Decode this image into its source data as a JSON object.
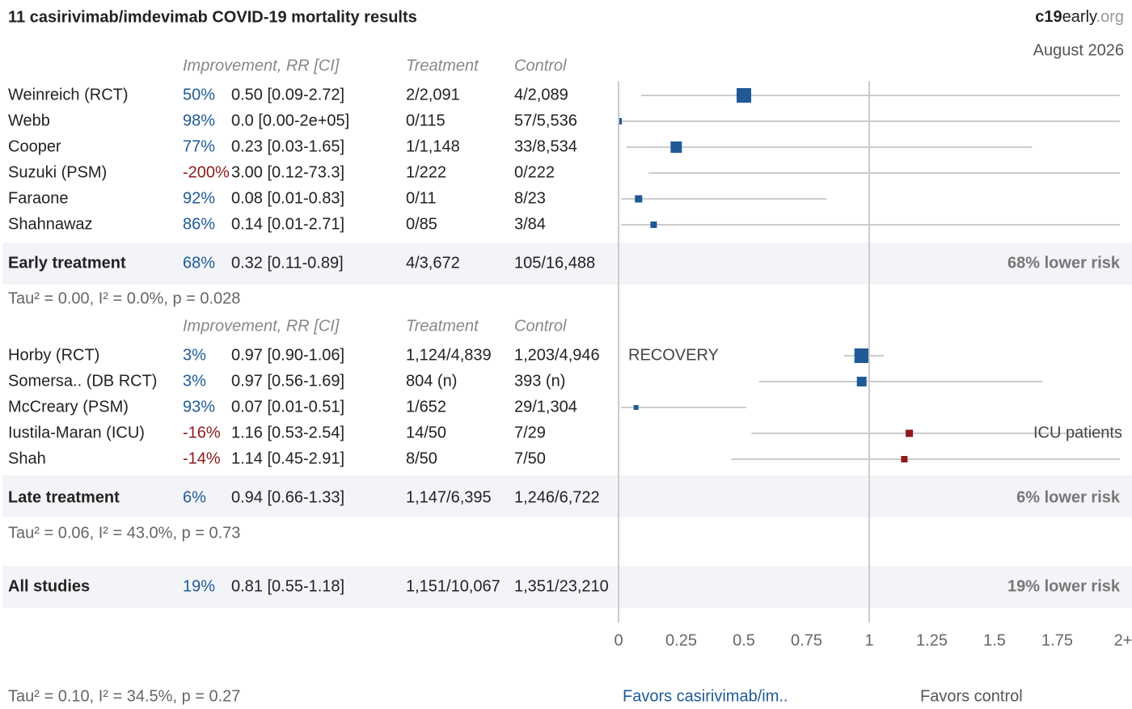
{
  "chart_data": {
    "type": "forest",
    "title": "11 casirivimab/imdevimab COVID-19 mortality results",
    "brand": [
      "c19",
      "early",
      ".org"
    ],
    "date": "August 2026",
    "xlim": [
      0,
      2
    ],
    "xticks": [
      0,
      0.25,
      0.5,
      0.75,
      1,
      1.25,
      1.5,
      1.75,
      {
        "value": 2,
        "label": "2+"
      }
    ],
    "groups": [
      {
        "columns": [
          "Improvement, RR [CI]",
          "Treatment",
          "Control"
        ],
        "studies": [
          {
            "name": "Weinreich (RCT)",
            "improvement": "50%",
            "rr_text": "0.50 [0.09-2.72]",
            "treatment": "2/2,091",
            "control": "4/2,089",
            "rr": 0.5,
            "lo": 0.09,
            "hi": 2.72
          },
          {
            "name": "Webb",
            "improvement": "98%",
            "rr_text": "0.0 [0.00-2e+05]",
            "treatment": "0/115",
            "control": "57/5,536",
            "rr": 0.0,
            "lo": 0.0,
            "hi": 200000
          },
          {
            "name": "Cooper",
            "improvement": "77%",
            "rr_text": "0.23 [0.03-1.65]",
            "treatment": "1/1,148",
            "control": "33/8,534",
            "rr": 0.23,
            "lo": 0.03,
            "hi": 1.65
          },
          {
            "name": "Suzuki (PSM)",
            "improvement": "-200%",
            "rr_text": "3.00 [0.12-73.3]",
            "treatment": "1/222",
            "control": "0/222",
            "rr": 3.0,
            "lo": 0.12,
            "hi": 73.3
          },
          {
            "name": "Faraone",
            "improvement": "92%",
            "rr_text": "0.08 [0.01-0.83]",
            "treatment": "0/11",
            "control": "8/23",
            "rr": 0.08,
            "lo": 0.01,
            "hi": 0.83
          },
          {
            "name": "Shahnawaz",
            "improvement": "86%",
            "rr_text": "0.14 [0.01-2.71]",
            "treatment": "0/85",
            "control": "3/84",
            "rr": 0.14,
            "lo": 0.01,
            "hi": 2.71
          }
        ],
        "summary": {
          "name": "Early treatment",
          "improvement": "68%",
          "rr_text": "0.32 [0.11-0.89]",
          "treatment": "4/3,672",
          "control": "105/16,488",
          "rr": 0.32,
          "lo": 0.11,
          "hi": 0.89,
          "label": "68% lower risk"
        },
        "stats": "Tau² = 0.00, I² = 0.0%, p = 0.028"
      },
      {
        "columns": [
          "Improvement, RR [CI]",
          "Treatment",
          "Control"
        ],
        "studies": [
          {
            "name": "Horby (RCT)",
            "improvement": "3%",
            "rr_text": "0.97 [0.90-1.06]",
            "treatment": "1,124/4,839",
            "control": "1,203/4,946",
            "rr": 0.97,
            "lo": 0.9,
            "hi": 1.06,
            "note": "RECOVERY"
          },
          {
            "name": "Somersa.. (DB RCT)",
            "improvement": "3%",
            "rr_text": "0.97 [0.56-1.69]",
            "treatment": "804 (n)",
            "control": "393 (n)",
            "rr": 0.97,
            "lo": 0.56,
            "hi": 1.69
          },
          {
            "name": "McCreary (PSM)",
            "improvement": "93%",
            "rr_text": "0.07 [0.01-0.51]",
            "treatment": "1/652",
            "control": "29/1,304",
            "rr": 0.07,
            "lo": 0.01,
            "hi": 0.51
          },
          {
            "name": "Iustila-Maran (ICU)",
            "improvement": "-16%",
            "rr_text": "1.16 [0.53-2.54]",
            "treatment": "14/50",
            "control": "7/29",
            "rr": 1.16,
            "lo": 0.53,
            "hi": 2.54,
            "note": "ICU patients"
          },
          {
            "name": "Shah",
            "improvement": "-14%",
            "rr_text": "1.14 [0.45-2.91]",
            "treatment": "8/50",
            "control": "7/50",
            "rr": 1.14,
            "lo": 0.45,
            "hi": 2.91
          }
        ],
        "summary": {
          "name": "Late treatment",
          "improvement": "6%",
          "rr_text": "0.94 [0.66-1.33]",
          "treatment": "1,147/6,395",
          "control": "1,246/6,722",
          "rr": 0.94,
          "lo": 0.66,
          "hi": 1.33,
          "label": "6% lower risk"
        },
        "stats": "Tau² = 0.06, I² = 43.0%, p = 0.73"
      }
    ],
    "overall": {
      "name": "All studies",
      "improvement": "19%",
      "rr_text": "0.81 [0.55-1.18]",
      "treatment": "1,151/10,067",
      "control": "1,351/23,210",
      "rr": 0.81,
      "lo": 0.55,
      "hi": 1.18,
      "label": "19% lower risk"
    },
    "overall_stats": "Tau² = 0.10, I² = 34.5%, p = 0.27",
    "favors": [
      "Favors casirivimab/im..",
      "Favors control"
    ]
  }
}
